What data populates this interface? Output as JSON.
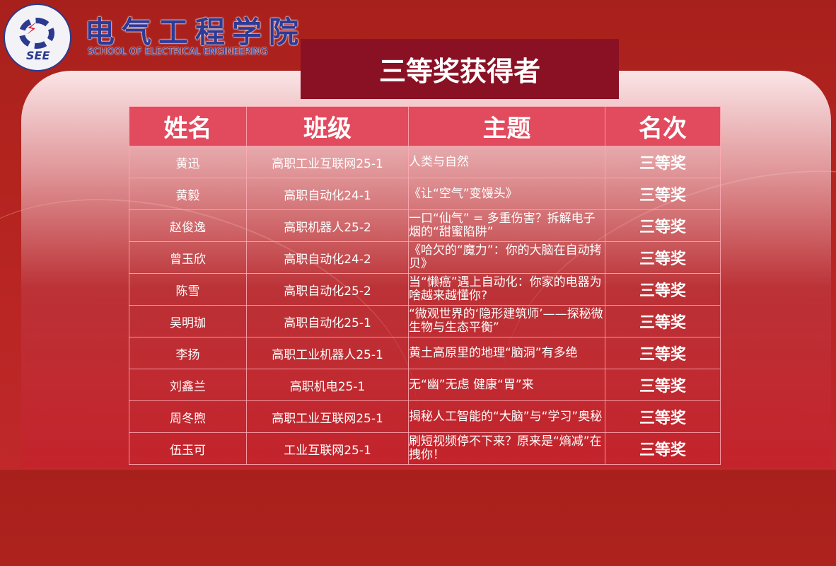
{
  "header": {
    "school_name_cn": "电气工程学院",
    "school_name_en": "SCHOOL OF ELECTRICAL ENGINEERING",
    "logo_text": "SEE"
  },
  "title": "三等奖获得者",
  "table": {
    "columns": [
      "姓名",
      "班级",
      "主题",
      "名次"
    ],
    "rows": [
      {
        "name": "黄迅",
        "class": "高职工业互联网25-1",
        "topic": "人类与自然",
        "rank": "三等奖"
      },
      {
        "name": "黄毅",
        "class": "高职自动化24-1",
        "topic": "《让“空气”变馒头》",
        "rank": "三等奖"
      },
      {
        "name": "赵俊逸",
        "class": "高职机器人25-2",
        "topic": " 一口“仙气” = 多重伤害？拆解电子烟的“甜蜜陷阱”",
        "rank": "三等奖"
      },
      {
        "name": "曾玉欣",
        "class": "高职自动化24-2",
        "topic": "《哈欠的“魔力”：你的大脑在自动拷贝》",
        "rank": "三等奖"
      },
      {
        "name": "陈雪",
        "class": "高职自动化25-2",
        "topic": "当“懒癌”遇上自动化：你家的电器为啥越来越懂你?",
        "rank": "三等奖"
      },
      {
        "name": "吴明珈",
        "class": "高职自动化25-1",
        "topic": " “微观世界的‘隐形建筑师’——探秘微生物与生态平衡”",
        "rank": "三等奖"
      },
      {
        "name": "李扬",
        "class": "高职工业机器人25-1",
        "topic": "黄土高原里的地理“脑洞”有多绝",
        "rank": "三等奖"
      },
      {
        "name": "刘鑫兰",
        "class": "高职机电25-1",
        "topic": "无“幽”无虑 健康“胃”来",
        "rank": "三等奖"
      },
      {
        "name": "周冬煦",
        "class": "高职工业互联网25-1",
        "topic": "揭秘人工智能的“大脑”与“学习”奥秘",
        "rank": "三等奖"
      },
      {
        "name": "伍玉可",
        "class": "工业互联网25-1",
        "topic": "刷短视频停不下来？原来是“熵减”在拽你！",
        "rank": "三等奖"
      }
    ]
  },
  "colors": {
    "background": "#b4241f",
    "banner": "#8a1124",
    "table_header": "#e24a5e",
    "logo_text": "#2d3a96"
  }
}
